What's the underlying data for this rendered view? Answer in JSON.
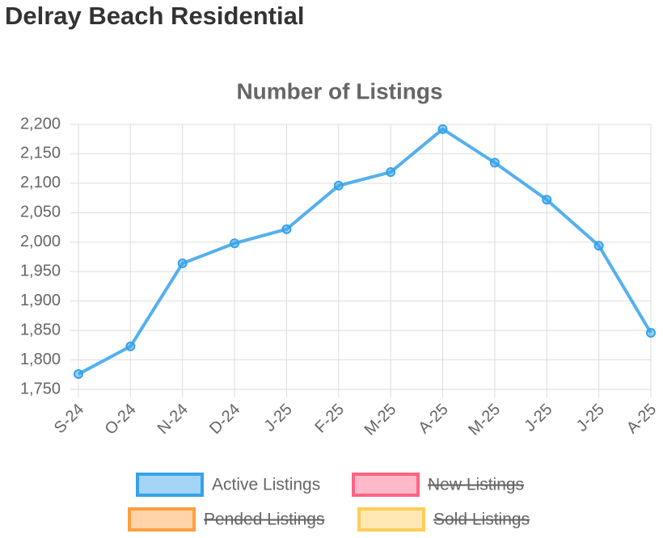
{
  "page_title": "Delray Beach Residential",
  "chart_data": {
    "type": "line",
    "title": "Number of Listings",
    "categories": [
      "S-24",
      "O-24",
      "N-24",
      "D-24",
      "J-25",
      "F-25",
      "M-25",
      "A-25",
      "M-25",
      "J-25",
      "J-25",
      "A-25"
    ],
    "series": [
      {
        "name": "Active Listings",
        "color": "#36a2eb",
        "values": [
          1776,
          1823,
          1964,
          1998,
          2022,
          2096,
          2119,
          2192,
          2135,
          2072,
          1994,
          1846
        ]
      },
      {
        "name": "New Listings",
        "color": "#ff6384",
        "hidden": true
      },
      {
        "name": "Pended Listings",
        "color": "#ff9f40",
        "hidden": true
      },
      {
        "name": "Sold Listings",
        "color": "#ffcd56",
        "hidden": true
      }
    ],
    "ylim": [
      1750,
      2200
    ],
    "yticks": [
      {
        "value": 1750,
        "label": "1,750"
      },
      {
        "value": 1800,
        "label": "1,800"
      },
      {
        "value": 1850,
        "label": "1,850"
      },
      {
        "value": 1900,
        "label": "1,900"
      },
      {
        "value": 1950,
        "label": "1,950"
      },
      {
        "value": 2000,
        "label": "2,000"
      },
      {
        "value": 2050,
        "label": "2,050"
      },
      {
        "value": 2100,
        "label": "2,100"
      },
      {
        "value": 2150,
        "label": "2,150"
      },
      {
        "value": 2200,
        "label": "2,200"
      }
    ],
    "grid": true
  }
}
